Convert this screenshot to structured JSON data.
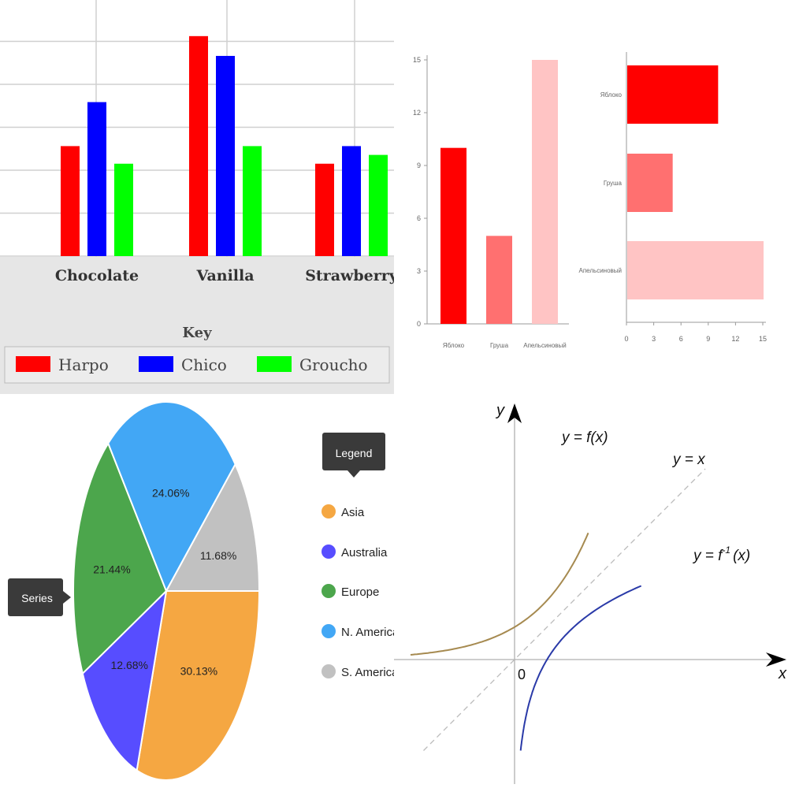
{
  "chart_data": [
    {
      "type": "bar",
      "categories": [
        "Chocolate",
        "Vanilla",
        "Strawberry"
      ],
      "series": [
        {
          "name": "Harpo",
          "color": "#ff0000",
          "values": [
            5,
            10,
            4.2
          ]
        },
        {
          "name": "Chico",
          "color": "#0000ff",
          "values": [
            7,
            9.1,
            5
          ]
        },
        {
          "name": "Groucho",
          "color": "#00ff00",
          "values": [
            4.2,
            5,
            4.6
          ]
        }
      ],
      "ylim": [
        0,
        12
      ],
      "grid": true,
      "legend": {
        "title": "Key",
        "placement": "bottom"
      }
    },
    {
      "type": "bar",
      "orientation": "vertical",
      "categories": [
        "Яблоко",
        "Груша",
        "Апельсиновый"
      ],
      "values": [
        10,
        5,
        15
      ],
      "colors": [
        "#ff0000",
        "#ff7070",
        "#ffc4c4"
      ],
      "yticks": [
        "0",
        "3",
        "6",
        "9",
        "12",
        "15"
      ],
      "ylim": [
        0,
        15
      ]
    },
    {
      "type": "bar",
      "orientation": "horizontal",
      "categories": [
        "Яблоко",
        "Груша",
        "Апельсиновый"
      ],
      "values": [
        10,
        5,
        15
      ],
      "colors": [
        "#ff0000",
        "#ff7070",
        "#ffc4c4"
      ],
      "xticks": [
        "0",
        "3",
        "6",
        "9",
        "12",
        "15"
      ],
      "xlim": [
        0,
        15
      ]
    },
    {
      "type": "pie",
      "tooltip": "Series",
      "legend_title": "Legend",
      "slices": [
        {
          "name": "Asia",
          "value": 30.13,
          "label": "30.13%",
          "color": "#f5a742"
        },
        {
          "name": "Australia",
          "value": 12.68,
          "label": "12.68%",
          "color": "#574dff"
        },
        {
          "name": "Europe",
          "value": 21.44,
          "label": "21.44%",
          "color": "#4ca64c"
        },
        {
          "name": "N. America",
          "value": 24.06,
          "label": "24.06%",
          "color": "#42a7f5"
        },
        {
          "name": "S. America",
          "value": 11.68,
          "label": "11.68%",
          "color": "#c1c1c1"
        }
      ]
    },
    {
      "type": "line",
      "xlabel": "x",
      "ylabel": "y",
      "origin_label": "0",
      "series": [
        {
          "name": "y = f(x)",
          "label_main": "y = f(x)",
          "color": "#a68a50"
        },
        {
          "name": "y = x",
          "label_main": "y = x",
          "color": "#bbbbbb",
          "dashed": true
        },
        {
          "name": "y = f⁻¹(x)",
          "label_main": "y = f",
          "label_sup": "-1",
          "label_tail": "(x)",
          "color": "#2a3aa8"
        }
      ]
    }
  ]
}
